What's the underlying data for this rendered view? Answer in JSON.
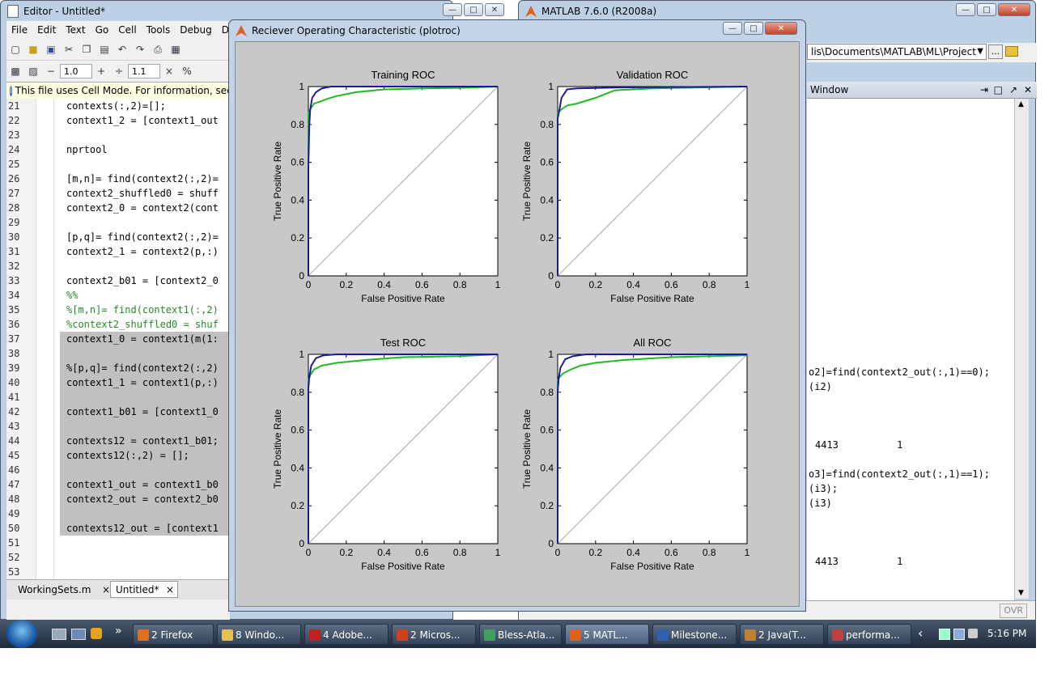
{
  "editor": {
    "title": "Editor - Untitled*",
    "menu": [
      "File",
      "Edit",
      "Text",
      "Go",
      "Cell",
      "Tools",
      "Debug",
      "Des"
    ],
    "toolbar": {
      "minus": "−",
      "plus": "+",
      "divide": "÷",
      "times": "×",
      "value1": "1.0",
      "value2": "1.1",
      "pct": "%"
    },
    "info": "This file uses Cell Mode. For information, see th",
    "lines": [
      {
        "n": "21",
        "t": "contexts(:,2)=[];",
        "hl": false,
        "c": false
      },
      {
        "n": "22",
        "t": "context1_2 = [context1_out",
        "hl": false,
        "c": false
      },
      {
        "n": "23",
        "t": "",
        "hl": false,
        "c": false
      },
      {
        "n": "24",
        "t": "nprtool",
        "hl": false,
        "c": false
      },
      {
        "n": "25",
        "t": "",
        "hl": false,
        "c": false
      },
      {
        "n": "26",
        "t": "[m,n]= find(context2(:,2)=",
        "hl": false,
        "c": false
      },
      {
        "n": "27",
        "t": "context2_shuffled0 = shuff",
        "hl": false,
        "c": false
      },
      {
        "n": "28",
        "t": "context2_0 = context2(cont",
        "hl": false,
        "c": false
      },
      {
        "n": "29",
        "t": "",
        "hl": false,
        "c": false
      },
      {
        "n": "30",
        "t": "[p,q]= find(context2(:,2)=",
        "hl": false,
        "c": false
      },
      {
        "n": "31",
        "t": "context2_1 = context2(p,:)",
        "hl": false,
        "c": false
      },
      {
        "n": "32",
        "t": "",
        "hl": false,
        "c": false
      },
      {
        "n": "33",
        "t": "context2_b01 = [context2_0",
        "hl": false,
        "c": false
      },
      {
        "n": "34",
        "t": "%%",
        "hl": false,
        "c": true
      },
      {
        "n": "35",
        "t": "%[m,n]= find(context1(:,2)",
        "hl": false,
        "c": true
      },
      {
        "n": "36",
        "t": "%context2_shuffled0 = shuf",
        "hl": false,
        "c": true
      },
      {
        "n": "37",
        "t": "context1_0 = context1(m(1:",
        "hl": true,
        "c": false
      },
      {
        "n": "38",
        "t": "",
        "hl": true,
        "c": false
      },
      {
        "n": "39",
        "t": "%[p,q]= find(context2(:,2)",
        "hl": true,
        "c": false
      },
      {
        "n": "40",
        "t": "context1_1 = context1(p,:)",
        "hl": true,
        "c": false
      },
      {
        "n": "41",
        "t": "",
        "hl": true,
        "c": false
      },
      {
        "n": "42",
        "t": "context1_b01 = [context1_0",
        "hl": true,
        "c": false
      },
      {
        "n": "43",
        "t": "",
        "hl": true,
        "c": false
      },
      {
        "n": "44",
        "t": "contexts12 = context1_b01;",
        "hl": true,
        "c": false
      },
      {
        "n": "45",
        "t": "contexts12(:,2) = [];",
        "hl": true,
        "c": false
      },
      {
        "n": "46",
        "t": "",
        "hl": true,
        "c": false
      },
      {
        "n": "47",
        "t": "context1_out = context1_b0",
        "hl": true,
        "c": false
      },
      {
        "n": "48",
        "t": "context2_out = context2_b0",
        "hl": true,
        "c": false
      },
      {
        "n": "49",
        "t": "",
        "hl": true,
        "c": false
      },
      {
        "n": "50",
        "t": "contexts12_out = [context1",
        "hl": true,
        "c": false
      },
      {
        "n": "51",
        "t": "",
        "hl": false,
        "c": false
      },
      {
        "n": "52",
        "t": "",
        "hl": false,
        "c": false
      },
      {
        "n": "53",
        "t": "",
        "hl": false,
        "c": false
      }
    ],
    "tabs": [
      {
        "label": "WorkingSets.m",
        "close": "×"
      },
      {
        "label": "Untitled*",
        "close": "×"
      }
    ]
  },
  "matlab": {
    "title": "MATLAB  7.6.0 (R2008a)",
    "path": "lis\\Documents\\MATLAB\\ML\\Project",
    "browse": "...",
    "window_label": "Window",
    "cmd_lines": [
      "o2]=find(context2_out(:,1)==0);",
      "(i2)",
      "4413          1",
      "o3]=find(context2_out(:,1)==1);",
      "(i3);",
      "(i3)",
      "4413          1"
    ],
    "ovr": "OVR"
  },
  "figure": {
    "title": "Reciever Operating Characteristic (plotroc)",
    "xlabel": "False Positive Rate",
    "ylabel": "True Positive Rate",
    "xticks": [
      "0",
      "0.2",
      "0.4",
      "0.6",
      "0.8",
      "1"
    ],
    "yticks": [
      "0",
      "0.2",
      "0.4",
      "0.6",
      "0.8",
      "1"
    ]
  },
  "chart_data": [
    {
      "type": "line",
      "title": "Training ROC",
      "xlabel": "False Positive Rate",
      "ylabel": "True Positive Rate",
      "xlim": [
        0,
        1
      ],
      "ylim": [
        0,
        1
      ],
      "series": [
        {
          "color": "#1a1aa0",
          "points": [
            [
              0,
              0
            ],
            [
              0,
              0.57
            ],
            [
              0.005,
              0.8
            ],
            [
              0.01,
              0.88
            ],
            [
              0.02,
              0.94
            ],
            [
              0.04,
              0.97
            ],
            [
              0.07,
              0.99
            ],
            [
              0.12,
              1
            ],
            [
              1,
              1
            ]
          ]
        },
        {
          "color": "#1fba1f",
          "points": [
            [
              0,
              0
            ],
            [
              0,
              0.86
            ],
            [
              0.01,
              0.88
            ],
            [
              0.03,
              0.91
            ],
            [
              0.06,
              0.92
            ],
            [
              0.1,
              0.935
            ],
            [
              0.15,
              0.95
            ],
            [
              0.25,
              0.97
            ],
            [
              0.4,
              0.985
            ],
            [
              0.6,
              0.99
            ],
            [
              0.8,
              0.993
            ],
            [
              1,
              1
            ]
          ]
        },
        {
          "color": "#aaaaaa",
          "points": [
            [
              0,
              0
            ],
            [
              1,
              1
            ]
          ]
        }
      ]
    },
    {
      "type": "line",
      "title": "Validation ROC",
      "xlabel": "False Positive Rate",
      "ylabel": "True Positive Rate",
      "xlim": [
        0,
        1
      ],
      "ylim": [
        0,
        1
      ],
      "series": [
        {
          "color": "#1a1aa0",
          "points": [
            [
              0,
              0
            ],
            [
              0,
              0.83
            ],
            [
              0.01,
              0.88
            ],
            [
              0.02,
              0.94
            ],
            [
              0.05,
              0.985
            ],
            [
              0.1,
              0.99
            ],
            [
              0.3,
              0.995
            ],
            [
              1,
              1
            ]
          ]
        },
        {
          "color": "#1fba1f",
          "points": [
            [
              0,
              0
            ],
            [
              0,
              0.86
            ],
            [
              0.02,
              0.88
            ],
            [
              0.05,
              0.9
            ],
            [
              0.1,
              0.91
            ],
            [
              0.15,
              0.925
            ],
            [
              0.2,
              0.94
            ],
            [
              0.25,
              0.96
            ],
            [
              0.3,
              0.98
            ],
            [
              0.5,
              0.99
            ],
            [
              1,
              1
            ]
          ]
        },
        {
          "color": "#aaaaaa",
          "points": [
            [
              0,
              0
            ],
            [
              1,
              1
            ]
          ]
        }
      ]
    },
    {
      "type": "line",
      "title": "Test ROC",
      "xlabel": "False Positive Rate",
      "ylabel": "True Positive Rate",
      "xlim": [
        0,
        1
      ],
      "ylim": [
        0,
        1
      ],
      "series": [
        {
          "color": "#1a1aa0",
          "points": [
            [
              0,
              0
            ],
            [
              0,
              0.82
            ],
            [
              0.005,
              0.88
            ],
            [
              0.015,
              0.94
            ],
            [
              0.04,
              0.98
            ],
            [
              0.08,
              0.995
            ],
            [
              0.15,
              1
            ],
            [
              1,
              1
            ]
          ]
        },
        {
          "color": "#1fba1f",
          "points": [
            [
              0,
              0
            ],
            [
              0,
              0.86
            ],
            [
              0.01,
              0.89
            ],
            [
              0.03,
              0.92
            ],
            [
              0.07,
              0.94
            ],
            [
              0.15,
              0.955
            ],
            [
              0.3,
              0.97
            ],
            [
              0.5,
              0.985
            ],
            [
              0.8,
              0.99
            ],
            [
              1,
              1
            ]
          ]
        },
        {
          "color": "#aaaaaa",
          "points": [
            [
              0,
              0
            ],
            [
              1,
              1
            ]
          ]
        }
      ]
    },
    {
      "type": "line",
      "title": "All ROC",
      "xlabel": "False Positive Rate",
      "ylabel": "True Positive Rate",
      "xlim": [
        0,
        1
      ],
      "ylim": [
        0,
        1
      ],
      "series": [
        {
          "color": "#1a1aa0",
          "points": [
            [
              0,
              0
            ],
            [
              0,
              0.8
            ],
            [
              0.005,
              0.87
            ],
            [
              0.015,
              0.93
            ],
            [
              0.04,
              0.975
            ],
            [
              0.08,
              0.99
            ],
            [
              0.15,
              1
            ],
            [
              1,
              1
            ]
          ]
        },
        {
          "color": "#1fba1f",
          "points": [
            [
              0,
              0
            ],
            [
              0,
              0.86
            ],
            [
              0.01,
              0.88
            ],
            [
              0.03,
              0.9
            ],
            [
              0.07,
              0.92
            ],
            [
              0.12,
              0.94
            ],
            [
              0.2,
              0.955
            ],
            [
              0.35,
              0.97
            ],
            [
              0.6,
              0.985
            ],
            [
              1,
              0.995
            ]
          ]
        },
        {
          "color": "#aaaaaa",
          "points": [
            [
              0,
              0
            ],
            [
              1,
              1
            ]
          ]
        }
      ]
    }
  ],
  "taskbar": {
    "items": [
      {
        "label": "2 Firefox",
        "color": "#e07020"
      },
      {
        "label": "8 Windo...",
        "color": "#e8c050"
      },
      {
        "label": "4 Adobe...",
        "color": "#c02020"
      },
      {
        "label": "2 Micros...",
        "color": "#d04020"
      },
      {
        "label": "Bless-Atla...",
        "color": "#40a060"
      },
      {
        "label": "5 MATL...",
        "color": "#e06020"
      },
      {
        "label": "Milestone...",
        "color": "#3060b0"
      },
      {
        "label": "2 Java(T...",
        "color": "#c08030"
      },
      {
        "label": "performa...",
        "color": "#c04040"
      }
    ],
    "arrow": "»",
    "back": "‹",
    "time": "5:16 PM"
  }
}
